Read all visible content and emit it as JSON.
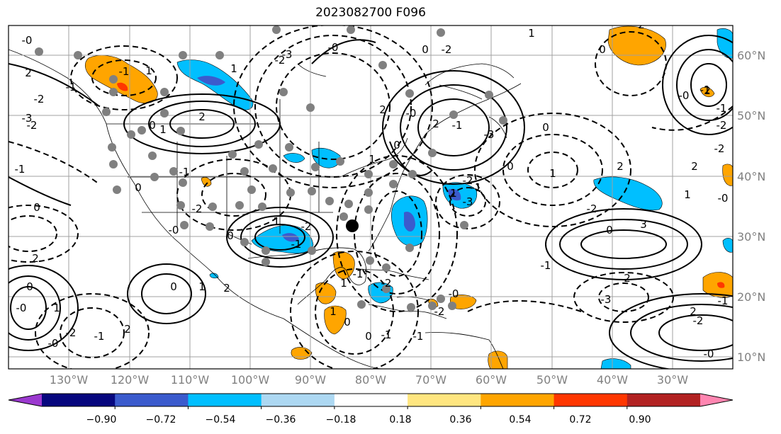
{
  "title": "2023082700 F096",
  "longitude_labels": [
    "130°W",
    "120°W",
    "110°W",
    "100°W",
    "90°W",
    "80°W",
    "70°W",
    "60°W",
    "50°W",
    "40°W",
    "30°W"
  ],
  "latitude_labels": [
    "60°N",
    "50°N",
    "40°N",
    "30°N",
    "20°N",
    "10°N"
  ],
  "colorbar": {
    "colors": [
      "#9b39cf",
      "#07077e",
      "#3b5bcd",
      "#00bfff",
      "#add8f2",
      "#ffffff",
      "#ffe680",
      "#ffa500",
      "#ff3700",
      "#b22222",
      "#ff86b1"
    ],
    "tick_labels": [
      "−0.90",
      "−0.72",
      "−0.54",
      "−0.36",
      "−0.18",
      "0.18",
      "0.36",
      "0.54",
      "0.72",
      "0.90"
    ]
  },
  "contour_labels": [
    "-0",
    "-1",
    "2",
    "-1",
    "-2",
    "-3",
    "1",
    "-2",
    "1",
    "0",
    "2",
    "1",
    "-2",
    "-0",
    "-3",
    "0",
    "-2",
    "1",
    "0",
    "2",
    "-0",
    "-1",
    "-1",
    "-2",
    "0",
    "-0",
    "2",
    "-1",
    "-3",
    "0",
    "1",
    "2",
    "-1",
    "0",
    "-1",
    "0",
    "1",
    "2",
    "2",
    "-2",
    "-0",
    "-2",
    "-1",
    "1",
    "-3",
    "-2",
    "0",
    "1",
    "3",
    "2",
    "-2",
    "-0",
    "0",
    "1",
    "-2",
    "-1",
    "0",
    "2",
    "0",
    "-0",
    "1",
    "-2",
    "2",
    "0",
    "1",
    "2",
    "-1",
    "-0",
    "-1",
    "-3",
    "2",
    "2",
    "-1",
    "-2",
    "-0",
    "-2",
    "1",
    "1",
    "-1",
    "-2",
    "0",
    "0",
    "-1",
    "-1",
    "-0"
  ]
}
